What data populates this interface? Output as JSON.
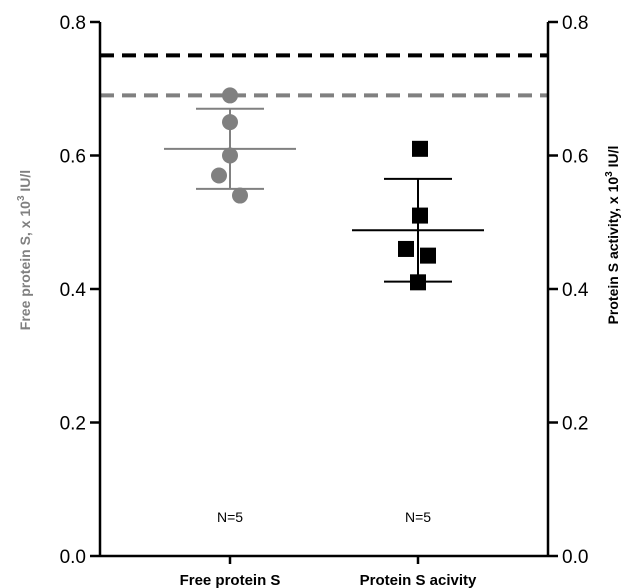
{
  "chart_data": {
    "type": "scatter",
    "categories": [
      "Free protein S",
      "Protein S acivity"
    ],
    "y_left": {
      "label_prefix": "Free protein S, x 10",
      "label_sup": "3",
      "label_suffix": " IU/l",
      "color": "#808080",
      "ylim": [
        0,
        0.8
      ],
      "ticks": [
        "0.0",
        "0.2",
        "0.4",
        "0.6",
        "0.8"
      ]
    },
    "y_right": {
      "label_prefix": "Protein S activity, x 10",
      "label_sup": "3",
      "label_suffix": " IU/l",
      "color": "#000000",
      "ylim": [
        0,
        0.8
      ],
      "ticks": [
        "0.0",
        "0.2",
        "0.4",
        "0.6",
        "0.8"
      ]
    },
    "series": [
      {
        "category": "Free protein S",
        "marker": "circle",
        "color": "#808080",
        "values": [
          0.69,
          0.65,
          0.6,
          0.57,
          0.54
        ],
        "mean": 0.61,
        "sd_upper": 0.67,
        "sd_lower": 0.55,
        "n_label": "N=5"
      },
      {
        "category": "Protein S acivity",
        "marker": "square",
        "color": "#000000",
        "values": [
          0.61,
          0.51,
          0.46,
          0.45,
          0.41
        ],
        "mean": 0.488,
        "sd_upper": 0.565,
        "sd_lower": 0.411,
        "n_label": "N=5"
      }
    ],
    "reference_lines": [
      {
        "value": 0.75,
        "color": "#000000",
        "style": "dashed"
      },
      {
        "value": 0.69,
        "color": "#808080",
        "style": "dashed"
      }
    ]
  }
}
